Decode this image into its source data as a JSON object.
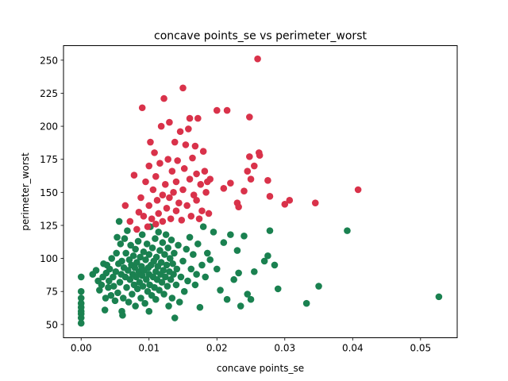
{
  "chart_data": {
    "type": "scatter",
    "title": "concave points_se vs perimeter_worst",
    "xlabel": "concave points_se",
    "ylabel": "perimeter_worst",
    "xlim": [
      -0.0026,
      0.0554
    ],
    "ylim": [
      40,
      261
    ],
    "xticks": [
      "0.00",
      "0.01",
      "0.02",
      "0.03",
      "0.04",
      "0.05"
    ],
    "xtick_values": [
      0,
      0.01,
      0.02,
      0.03,
      0.04,
      0.05
    ],
    "yticks": [
      "50",
      "75",
      "100",
      "125",
      "150",
      "175",
      "200",
      "225",
      "250"
    ],
    "ytick_values": [
      50,
      75,
      100,
      125,
      150,
      175,
      200,
      225,
      250
    ],
    "grid": false,
    "legend": "none",
    "series": [
      {
        "color": "#1a8150",
        "points": [
          [
            0.0,
            51
          ],
          [
            0.0,
            55
          ],
          [
            0.0,
            58
          ],
          [
            0.0,
            60
          ],
          [
            0.0,
            63
          ],
          [
            0.0,
            66
          ],
          [
            0.0,
            70
          ],
          [
            0.0,
            75
          ],
          [
            0.0,
            86
          ],
          [
            0.0017,
            88
          ],
          [
            0.0022,
            91
          ],
          [
            0.0025,
            83
          ],
          [
            0.0027,
            76
          ],
          [
            0.003,
            80
          ],
          [
            0.0032,
            86
          ],
          [
            0.0033,
            96
          ],
          [
            0.0035,
            61
          ],
          [
            0.0036,
            70
          ],
          [
            0.0037,
            89
          ],
          [
            0.0038,
            95
          ],
          [
            0.004,
            78
          ],
          [
            0.0041,
            83
          ],
          [
            0.0042,
            92
          ],
          [
            0.0044,
            72
          ],
          [
            0.0045,
            100
          ],
          [
            0.0047,
            86
          ],
          [
            0.0048,
            79
          ],
          [
            0.005,
            68
          ],
          [
            0.0051,
            90
          ],
          [
            0.0052,
            104
          ],
          [
            0.0053,
            116
          ],
          [
            0.0054,
            74
          ],
          [
            0.0055,
            96
          ],
          [
            0.0056,
            128
          ],
          [
            0.0057,
            82
          ],
          [
            0.0058,
            111
          ],
          [
            0.0059,
            88
          ],
          [
            0.006,
            60
          ],
          [
            0.006,
            98
          ],
          [
            0.0061,
            57
          ],
          [
            0.0062,
            70
          ],
          [
            0.0063,
            93
          ],
          [
            0.0064,
            115
          ],
          [
            0.0065,
            86
          ],
          [
            0.0066,
            104
          ],
          [
            0.0067,
            78
          ],
          [
            0.0068,
            121
          ],
          [
            0.0069,
            91
          ],
          [
            0.007,
            67
          ],
          [
            0.0071,
            99
          ],
          [
            0.0072,
            84
          ],
          [
            0.0073,
            110
          ],
          [
            0.0074,
            95
          ],
          [
            0.0075,
            73
          ],
          [
            0.0076,
            88
          ],
          [
            0.0077,
            102
          ],
          [
            0.0078,
            80
          ],
          [
            0.0079,
            93
          ],
          [
            0.008,
            64
          ],
          [
            0.008,
            107
          ],
          [
            0.0081,
            86
          ],
          [
            0.0082,
            97
          ],
          [
            0.0083,
            77
          ],
          [
            0.0084,
            113
          ],
          [
            0.0085,
            90
          ],
          [
            0.0086,
            82
          ],
          [
            0.0087,
            101
          ],
          [
            0.0088,
            70
          ],
          [
            0.0089,
            94
          ],
          [
            0.009,
            87
          ],
          [
            0.009,
            118
          ],
          [
            0.0091,
            79
          ],
          [
            0.0092,
            105
          ],
          [
            0.0093,
            91
          ],
          [
            0.0094,
            66
          ],
          [
            0.0095,
            99
          ],
          [
            0.0096,
            84
          ],
          [
            0.0097,
            111
          ],
          [
            0.0098,
            75
          ],
          [
            0.0099,
            93
          ],
          [
            0.01,
            60
          ],
          [
            0.01,
            88
          ],
          [
            0.01,
            103
          ],
          [
            0.0101,
            80
          ],
          [
            0.0102,
            124
          ],
          [
            0.0103,
            95
          ],
          [
            0.0104,
            72
          ],
          [
            0.0105,
            108
          ],
          [
            0.0106,
            86
          ],
          [
            0.0107,
            98
          ],
          [
            0.0108,
            78
          ],
          [
            0.0109,
            115
          ],
          [
            0.011,
            90
          ],
          [
            0.011,
            69
          ],
          [
            0.0111,
            101
          ],
          [
            0.0112,
            84
          ],
          [
            0.0113,
            94
          ],
          [
            0.0114,
            120
          ],
          [
            0.0115,
            76
          ],
          [
            0.0116,
            106
          ],
          [
            0.0117,
            88
          ],
          [
            0.0118,
            97
          ],
          [
            0.0119,
            82
          ],
          [
            0.012,
            112
          ],
          [
            0.0121,
            91
          ],
          [
            0.0122,
            73
          ],
          [
            0.0123,
            103
          ],
          [
            0.0124,
            86
          ],
          [
            0.0125,
            118
          ],
          [
            0.0126,
            95
          ],
          [
            0.0127,
            79
          ],
          [
            0.0128,
            108
          ],
          [
            0.0129,
            64
          ],
          [
            0.013,
            90
          ],
          [
            0.0131,
            100
          ],
          [
            0.0132,
            84
          ],
          [
            0.0133,
            114
          ],
          [
            0.0134,
            70
          ],
          [
            0.0135,
            96
          ],
          [
            0.0136,
            88
          ],
          [
            0.0137,
            104
          ],
          [
            0.0138,
            55
          ],
          [
            0.014,
            80
          ],
          [
            0.0141,
            92
          ],
          [
            0.0143,
            110
          ],
          [
            0.0145,
            67
          ],
          [
            0.0147,
            86
          ],
          [
            0.015,
            98
          ],
          [
            0.0152,
            75
          ],
          [
            0.0155,
            107
          ],
          [
            0.0157,
            83
          ],
          [
            0.016,
            116
          ],
          [
            0.0162,
            92
          ],
          [
            0.0165,
            103
          ],
          [
            0.0168,
            80
          ],
          [
            0.017,
            88
          ],
          [
            0.0172,
            111
          ],
          [
            0.0175,
            63
          ],
          [
            0.0178,
            95
          ],
          [
            0.018,
            124
          ],
          [
            0.0183,
            86
          ],
          [
            0.0186,
            104
          ],
          [
            0.019,
            99
          ],
          [
            0.0195,
            120
          ],
          [
            0.02,
            92
          ],
          [
            0.0205,
            76
          ],
          [
            0.021,
            112
          ],
          [
            0.0215,
            69
          ],
          [
            0.022,
            118
          ],
          [
            0.0225,
            84
          ],
          [
            0.023,
            106
          ],
          [
            0.0232,
            89
          ],
          [
            0.0235,
            64
          ],
          [
            0.024,
            117
          ],
          [
            0.0245,
            73
          ],
          [
            0.025,
            69
          ],
          [
            0.0255,
            90
          ],
          [
            0.027,
            98
          ],
          [
            0.0275,
            102
          ],
          [
            0.0278,
            121
          ],
          [
            0.0285,
            95
          ],
          [
            0.029,
            77
          ],
          [
            0.0332,
            66
          ],
          [
            0.035,
            79
          ],
          [
            0.0392,
            121
          ],
          [
            0.0527,
            71
          ]
        ]
      },
      {
        "color": "#d9324a",
        "points": [
          [
            0.0065,
            140
          ],
          [
            0.0072,
            128
          ],
          [
            0.0078,
            163
          ],
          [
            0.0082,
            122
          ],
          [
            0.0085,
            135
          ],
          [
            0.0088,
            146
          ],
          [
            0.009,
            214
          ],
          [
            0.0092,
            132
          ],
          [
            0.0095,
            158
          ],
          [
            0.0098,
            124
          ],
          [
            0.01,
            170
          ],
          [
            0.01,
            140
          ],
          [
            0.0102,
            188
          ],
          [
            0.0104,
            130
          ],
          [
            0.0106,
            152
          ],
          [
            0.0108,
            180
          ],
          [
            0.011,
            126
          ],
          [
            0.011,
            162
          ],
          [
            0.0112,
            144
          ],
          [
            0.0114,
            134
          ],
          [
            0.0116,
            172
          ],
          [
            0.0118,
            200
          ],
          [
            0.012,
            148
          ],
          [
            0.012,
            128
          ],
          [
            0.0122,
            221
          ],
          [
            0.0124,
            156
          ],
          [
            0.0126,
            138
          ],
          [
            0.0128,
            175
          ],
          [
            0.013,
            203
          ],
          [
            0.013,
            146
          ],
          [
            0.0132,
            130
          ],
          [
            0.0134,
            166
          ],
          [
            0.0136,
            150
          ],
          [
            0.0138,
            188
          ],
          [
            0.014,
            136
          ],
          [
            0.014,
            158
          ],
          [
            0.0142,
            174
          ],
          [
            0.0144,
            142
          ],
          [
            0.0146,
            196
          ],
          [
            0.0148,
            129
          ],
          [
            0.015,
            229
          ],
          [
            0.015,
            152
          ],
          [
            0.0152,
            168
          ],
          [
            0.0154,
            186
          ],
          [
            0.0156,
            140
          ],
          [
            0.0158,
            198
          ],
          [
            0.016,
            206
          ],
          [
            0.016,
            160
          ],
          [
            0.0162,
            132
          ],
          [
            0.0164,
            176
          ],
          [
            0.0166,
            148
          ],
          [
            0.0168,
            185
          ],
          [
            0.017,
            144
          ],
          [
            0.017,
            164
          ],
          [
            0.0172,
            206
          ],
          [
            0.0174,
            130
          ],
          [
            0.0176,
            156
          ],
          [
            0.0178,
            136
          ],
          [
            0.018,
            181
          ],
          [
            0.0182,
            166
          ],
          [
            0.0184,
            150
          ],
          [
            0.0186,
            158
          ],
          [
            0.0188,
            134
          ],
          [
            0.019,
            160
          ],
          [
            0.02,
            212
          ],
          [
            0.021,
            153
          ],
          [
            0.0215,
            212
          ],
          [
            0.022,
            157
          ],
          [
            0.023,
            142
          ],
          [
            0.0232,
            139
          ],
          [
            0.024,
            151
          ],
          [
            0.0245,
            166
          ],
          [
            0.0248,
            207
          ],
          [
            0.0248,
            177
          ],
          [
            0.025,
            160
          ],
          [
            0.0255,
            170
          ],
          [
            0.026,
            251
          ],
          [
            0.0262,
            180
          ],
          [
            0.0263,
            178
          ],
          [
            0.0275,
            159
          ],
          [
            0.0278,
            147
          ],
          [
            0.03,
            141
          ],
          [
            0.0307,
            144
          ],
          [
            0.0345,
            142
          ],
          [
            0.0408,
            152
          ]
        ]
      }
    ]
  }
}
